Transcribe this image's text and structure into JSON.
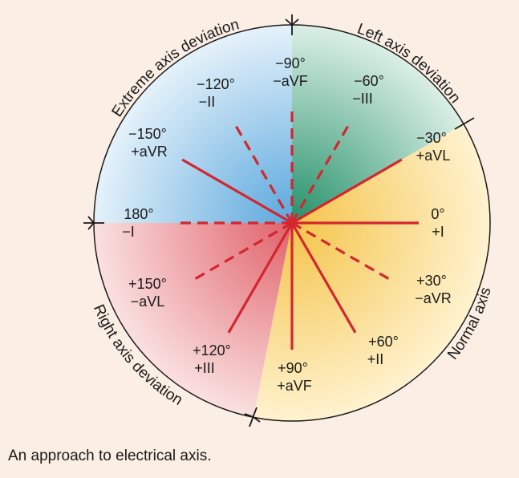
{
  "diagram": {
    "sectors": {
      "extreme": "Extreme axis deviation",
      "left": "Left axis deviation",
      "normal": "Normal axis",
      "right": "Right axis deviation"
    },
    "leads": [
      {
        "angle": -90,
        "deg": "−90°",
        "lead": "−aVF",
        "style": "dashed",
        "name": "minus-avf"
      },
      {
        "angle": -60,
        "deg": "−60°",
        "lead": "−III",
        "style": "dashed",
        "name": "minus-iii"
      },
      {
        "angle": -30,
        "deg": "−30°",
        "lead": "+aVL",
        "style": "solid",
        "name": "plus-avl"
      },
      {
        "angle": 0,
        "deg": "0°",
        "lead": "+I",
        "style": "solid",
        "name": "plus-i"
      },
      {
        "angle": 30,
        "deg": "+30°",
        "lead": "−aVR",
        "style": "dashed",
        "name": "minus-avr"
      },
      {
        "angle": 60,
        "deg": "+60°",
        "lead": "+II",
        "style": "solid",
        "name": "plus-ii"
      },
      {
        "angle": 90,
        "deg": "+90°",
        "lead": "+aVF",
        "style": "solid",
        "name": "plus-avf"
      },
      {
        "angle": 120,
        "deg": "+120°",
        "lead": "+III",
        "style": "solid",
        "name": "plus-iii"
      },
      {
        "angle": 150,
        "deg": "+150°",
        "lead": "−aVL",
        "style": "dashed",
        "name": "minus-avl"
      },
      {
        "angle": 180,
        "deg": "180°",
        "lead": "−I",
        "style": "dashed",
        "name": "minus-i"
      },
      {
        "angle": -150,
        "deg": "−150°",
        "lead": "+aVR",
        "style": "solid",
        "name": "plus-avr"
      },
      {
        "angle": -120,
        "deg": "−120°",
        "lead": "−II",
        "style": "dashed",
        "name": "minus-ii"
      }
    ],
    "colors": {
      "line": "#d3262e",
      "blue": "#5aa8dd",
      "green": "#2f9d73",
      "yellow": "#f6c74f",
      "red": "#e0616a"
    }
  },
  "caption": "An approach to electrical axis."
}
